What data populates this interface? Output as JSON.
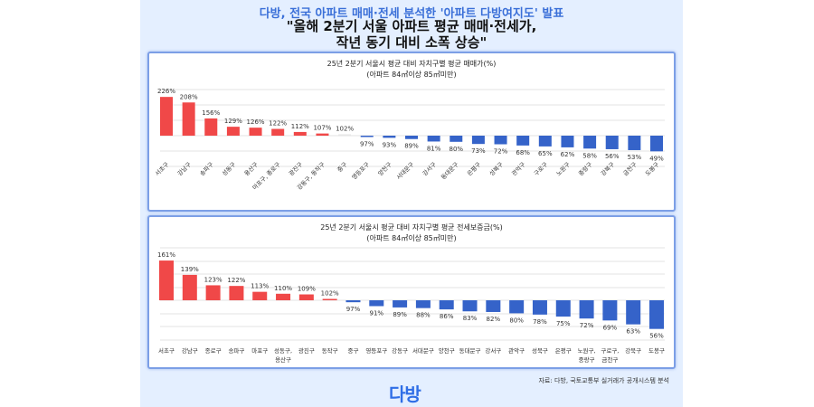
{
  "header": {
    "line1": "다방, 전국 아파트 매매·전세 분석한 '아파트 다방여지도' 발표",
    "line2": "\"올해 2분기 서울 아파트 평균 매매·전세가,",
    "line3": "작년 동기 대비 소폭 상승\""
  },
  "colors": {
    "up": "#f04848",
    "down": "#3563c9",
    "border": "#7c9fe6",
    "accent": "#2f6ee6"
  },
  "chart_data": [
    {
      "type": "bar",
      "title": "25년 2분기 서울시 평균 대비 자치구별 평균 매매가(%)",
      "subtitle": "(아파트 84㎡이상 85㎡미만)",
      "baseline": 100,
      "categories": [
        "서초구",
        "강남구",
        "송파구",
        "성동구",
        "용산구",
        "마포구, 종로구",
        "광진구",
        "강동구, 동작구",
        "중구",
        "영등포구",
        "양천구",
        "서대문구",
        "강서구",
        "동대문구",
        "은평구",
        "성북구",
        "관악구",
        "구로구",
        "노원구",
        "중랑구",
        "강북구",
        "금천구",
        "도봉구"
      ],
      "values": [
        226,
        208,
        156,
        129,
        126,
        122,
        112,
        107,
        102,
        97,
        93,
        89,
        81,
        80,
        73,
        72,
        68,
        65,
        62,
        58,
        56,
        53,
        49
      ],
      "unit": "%"
    },
    {
      "type": "bar",
      "title": "25년 2분기 서울시 평균 대비 자치구별 평균 전세보증금(%)",
      "subtitle": "(아파트 84㎡이상 85㎡미만)",
      "baseline": 100,
      "categories": [
        "서초구",
        "강남구",
        "종로구",
        "송파구",
        "마포구",
        "성동구,|용산구",
        "광진구",
        "동작구",
        "중구",
        "영등포구",
        "강동구",
        "서대문구",
        "양천구",
        "동대문구",
        "강서구",
        "관악구",
        "성북구",
        "은평구",
        "노원구,|중랑구",
        "구로구,|금천구",
        "강북구",
        "도봉구"
      ],
      "values": [
        161,
        139,
        123,
        122,
        113,
        110,
        109,
        102,
        97,
        91,
        89,
        88,
        86,
        83,
        82,
        80,
        78,
        75,
        72,
        69,
        63,
        56
      ],
      "unit": "%"
    }
  ],
  "footer": {
    "source": "자료: 다방, 국토교통부 실거래가 공개시스템 분석",
    "logo": "다방"
  }
}
